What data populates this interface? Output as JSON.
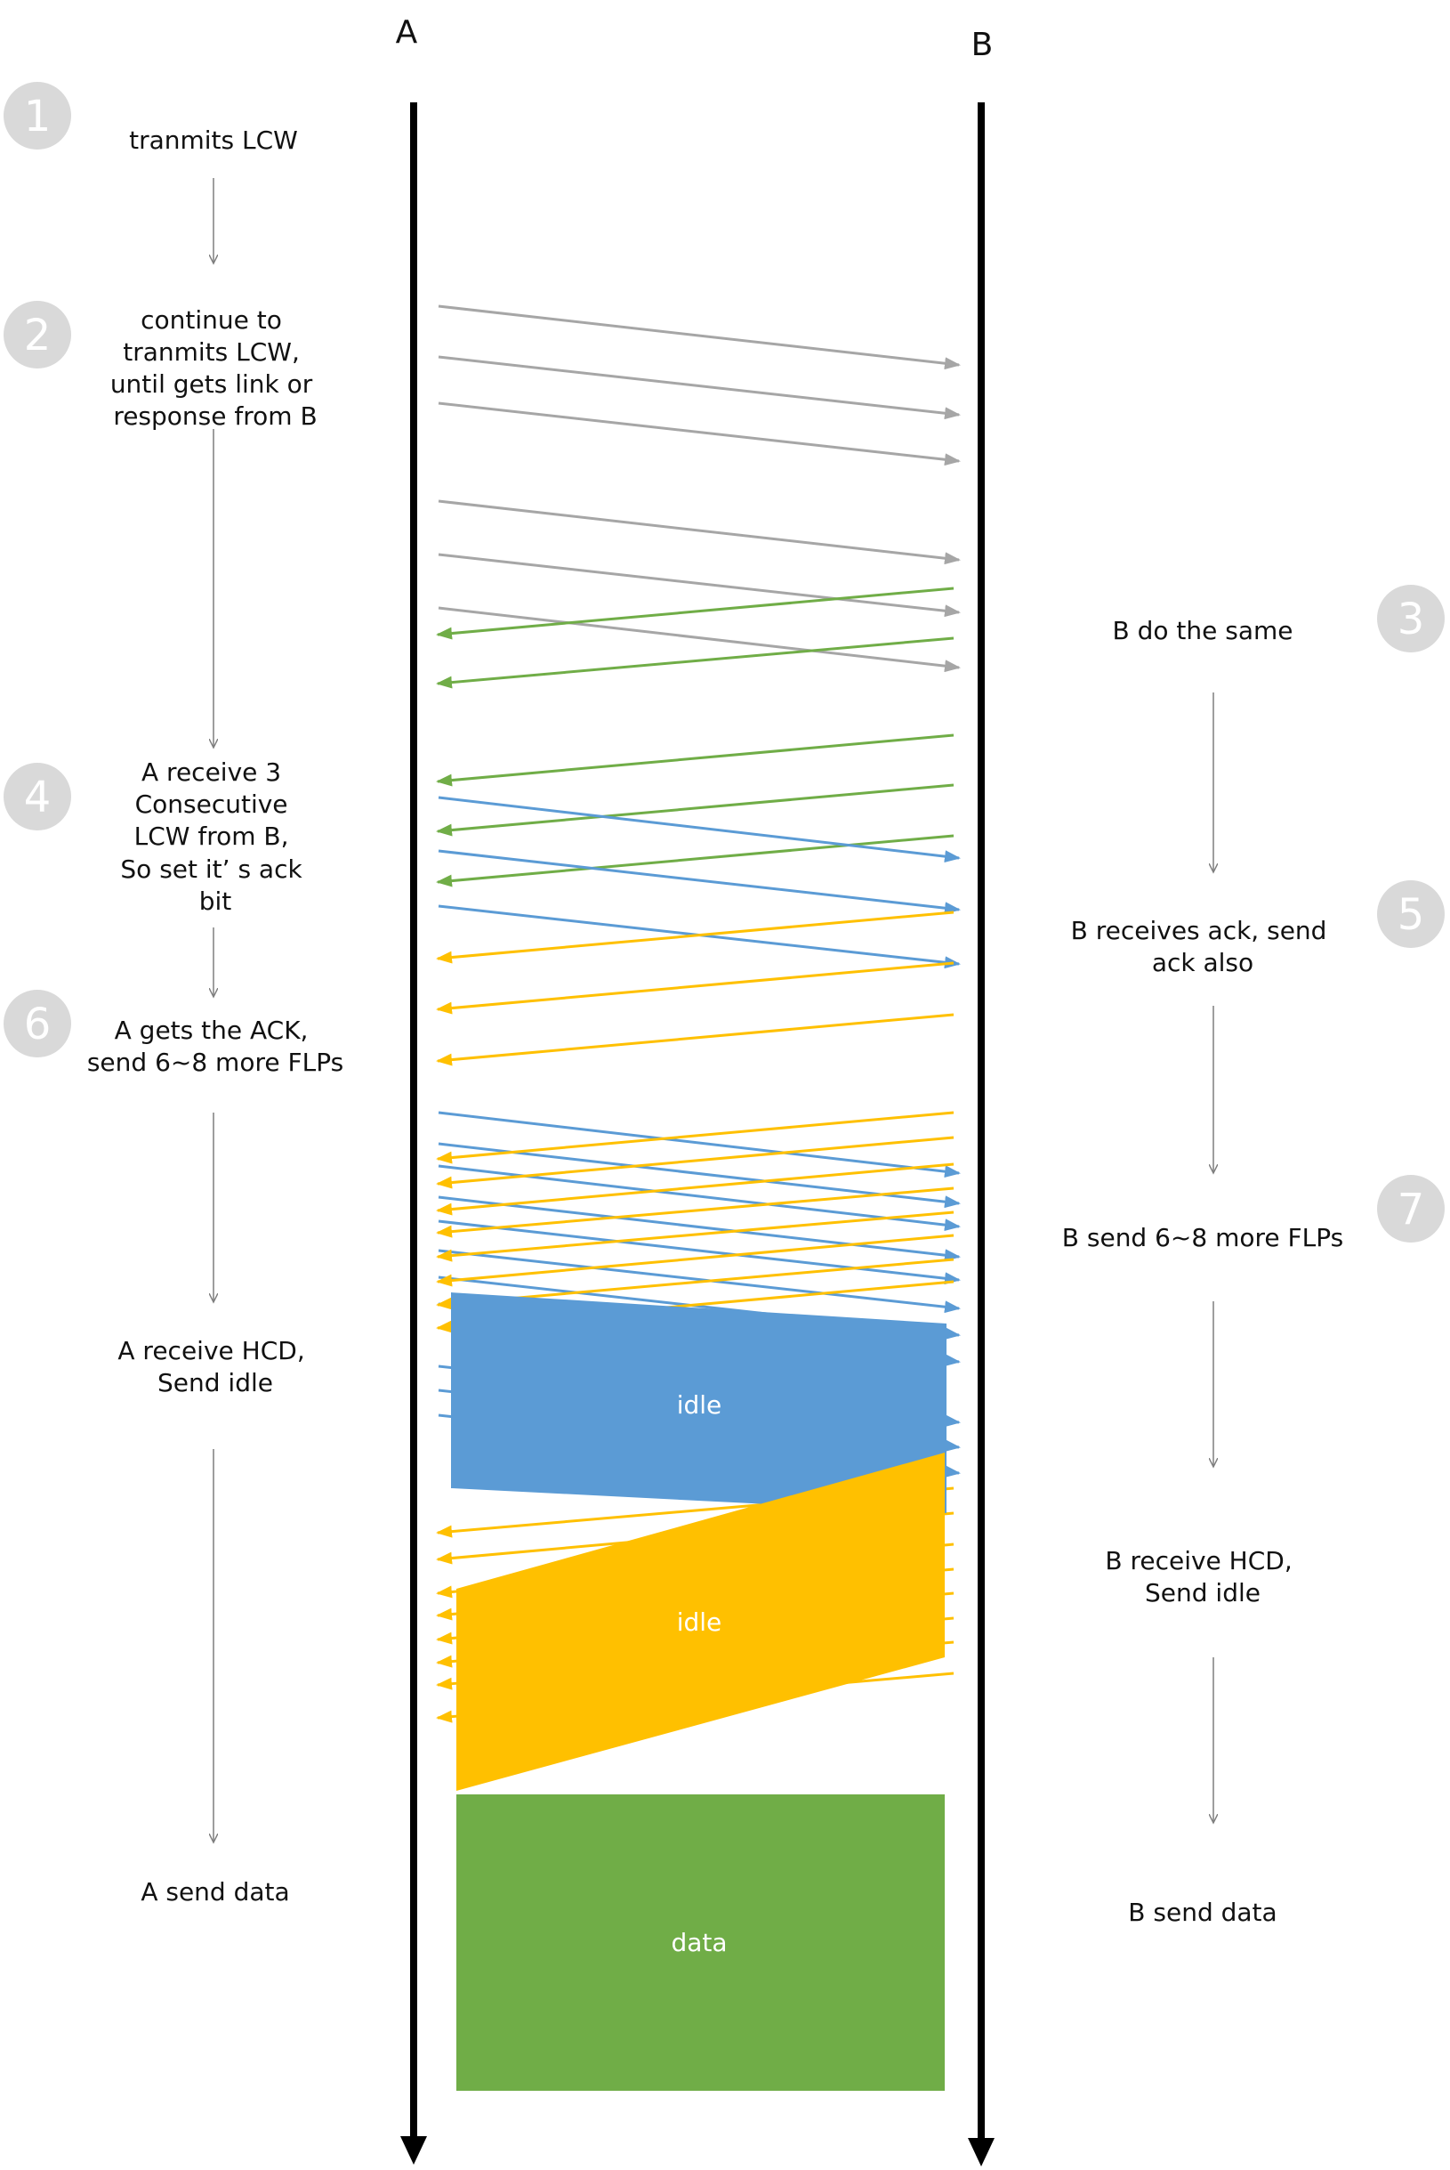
{
  "participants": {
    "a": "A",
    "b": "B"
  },
  "colors": {
    "lifeline": "#000000",
    "gray": "#a6a6a6",
    "green": "#70ad47",
    "blue": "#5b9bd5",
    "orange": "#ffc000",
    "badge": "#d9d9d9",
    "flow": "#7f7f7f",
    "box_text": "#ffffff"
  },
  "steps_left": [
    {
      "badge": "1",
      "lines": [
        "tranmits LCW"
      ]
    },
    {
      "badge": "2",
      "lines": [
        "continue to",
        "tranmits LCW,",
        "until gets link or",
        "response from B"
      ]
    },
    {
      "badge": "4",
      "lines": [
        "A receive 3",
        "Consecutive",
        "LCW from B,",
        "So set it’ s ack",
        "bit"
      ]
    },
    {
      "badge": "6",
      "lines": [
        "A gets the ACK,",
        "send 6~8 more FLPs"
      ]
    },
    {
      "badge": "",
      "lines": [
        "A receive HCD,",
        "Send idle"
      ]
    },
    {
      "badge": "",
      "lines": [
        "A send data"
      ]
    }
  ],
  "steps_right": [
    {
      "badge": "3",
      "lines": [
        "B do the same"
      ]
    },
    {
      "badge": "5",
      "lines": [
        "B receives ack, send",
        "ack also"
      ]
    },
    {
      "badge": "7",
      "lines": [
        "B send 6~8 more FLPs"
      ]
    },
    {
      "badge": "",
      "lines": [
        "B receive HCD,",
        "Send idle"
      ]
    },
    {
      "badge": "",
      "lines": [
        "B send data"
      ]
    }
  ],
  "blocks": {
    "a_idle": "idle",
    "b_idle": "idle",
    "data": "data"
  },
  "icons": {
    "badge": "step-number-circle",
    "flow_arrow": "down-arrow-icon"
  }
}
